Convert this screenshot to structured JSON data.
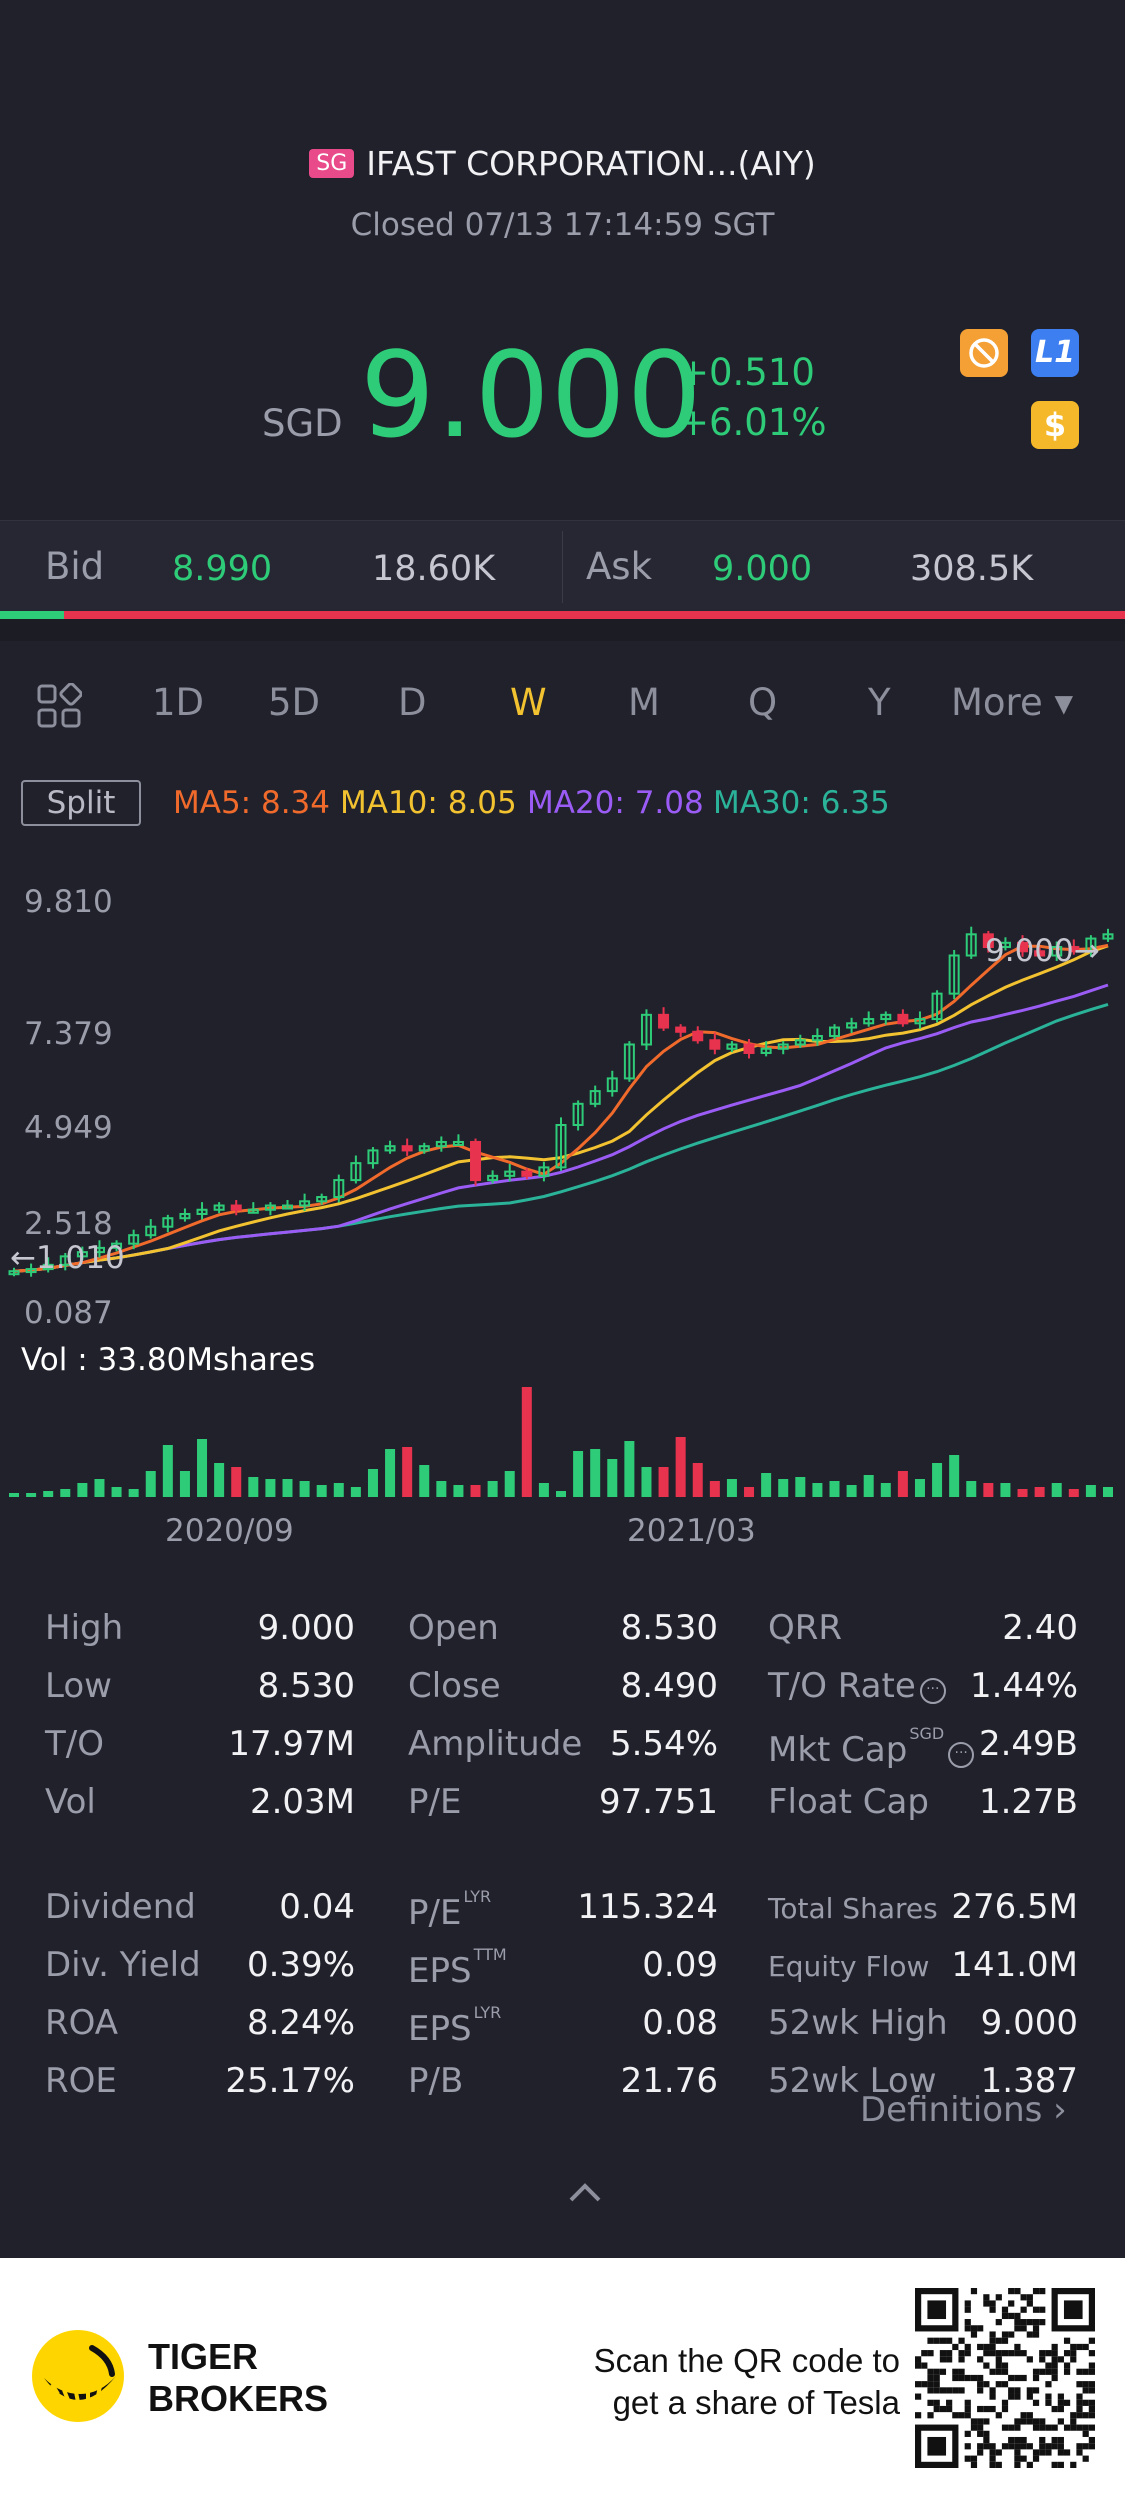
{
  "header": {
    "market_badge": "SG",
    "title": "IFAST CORPORATION...(AIY)",
    "status": "Closed 07/13 17:14:59 SGT",
    "currency": "SGD",
    "price": "9.000",
    "change": "+0.510",
    "change_pct": "+6.01%",
    "icons": [
      "no-shorting-icon",
      "level1-icon",
      "dollar-icon"
    ],
    "level_badge": "L1",
    "dollar_badge": "$"
  },
  "bidask": {
    "bid_label": "Bid",
    "bid_price": "8.990",
    "bid_volume": "18.60K",
    "ask_label": "Ask",
    "ask_price": "9.000",
    "ask_volume": "308.5K",
    "bid_ratio": 0.057
  },
  "tabs": {
    "items": [
      "1D",
      "5D",
      "D",
      "W",
      "M",
      "Q",
      "Y"
    ],
    "active": "W",
    "more_label": "More ▾"
  },
  "ma": {
    "split_label": "Split",
    "ma5": "MA5: 8.34",
    "ma10": "MA10: 8.05",
    "ma20": "MA20: 7.08",
    "ma30": "MA30: 6.35",
    "colors": {
      "ma5": "#f06a2c",
      "ma10": "#f2c230",
      "ma20": "#9b5cf5",
      "ma30": "#2bb39a",
      "up": "#2ecc78",
      "down": "#e8334f"
    }
  },
  "chart": {
    "y_labels": [
      "9.810",
      "7.379",
      "4.949",
      "2.518",
      "0.087"
    ],
    "low_marker": "←1.010",
    "last_marker": "9.000→",
    "vol_label": "Vol  : 33.80Mshares",
    "date_labels": [
      "2020/09",
      "2021/03"
    ]
  },
  "chart_data": {
    "type": "candlestick",
    "interval": "weekly",
    "y_ticks": [
      9.81,
      7.379,
      4.949,
      2.518,
      0.087
    ],
    "ylim": [
      0.087,
      9.81
    ],
    "x_labels": [
      "2020/09",
      "2021/03"
    ],
    "last_price": 9.0,
    "period_low": 1.01,
    "close": [
      1.05,
      1.1,
      1.2,
      1.4,
      1.5,
      1.6,
      1.7,
      1.9,
      2.1,
      2.3,
      2.4,
      2.5,
      2.6,
      2.5,
      2.5,
      2.6,
      2.6,
      2.7,
      2.8,
      3.2,
      3.6,
      3.9,
      4.0,
      3.9,
      4.0,
      4.1,
      4.1,
      3.2,
      3.3,
      3.4,
      3.3,
      3.5,
      4.5,
      5.0,
      5.3,
      5.6,
      6.4,
      7.1,
      6.8,
      6.7,
      6.5,
      6.3,
      6.4,
      6.2,
      6.3,
      6.4,
      6.5,
      6.6,
      6.8,
      6.9,
      7.0,
      7.1,
      6.9,
      7.0,
      7.6,
      8.5,
      9.0,
      8.7,
      8.8,
      8.6,
      8.5,
      8.7,
      8.6,
      8.9,
      9.0
    ],
    "volume_label": "Vol: 33.80Mshares",
    "ma": {
      "MA5": 8.34,
      "MA10": 8.05,
      "MA20": 7.08,
      "MA30": 6.35
    }
  },
  "stats": {
    "col1": [
      {
        "label": "High",
        "value": "9.000"
      },
      {
        "label": "Low",
        "value": "8.530"
      },
      {
        "label": "T/O",
        "value": "17.97M"
      },
      {
        "label": "Vol",
        "value": "2.03M"
      },
      {
        "label": "Dividend",
        "value": "0.04"
      },
      {
        "label": "Div. Yield",
        "value": "0.39%"
      },
      {
        "label": "ROA",
        "value": "8.24%"
      },
      {
        "label": "ROE",
        "value": "25.17%"
      }
    ],
    "col2": [
      {
        "label": "Open",
        "value": "8.530"
      },
      {
        "label": "Close",
        "value": "8.490"
      },
      {
        "label": "Amplitude",
        "value": "5.54%"
      },
      {
        "label": "P/E",
        "value": "97.751"
      },
      {
        "label": "P/E",
        "sup": "LYR",
        "value": "115.324"
      },
      {
        "label": "EPS",
        "sup": "TTM",
        "value": "0.09"
      },
      {
        "label": "EPS",
        "sup": "LYR",
        "value": "0.08"
      },
      {
        "label": "P/B",
        "value": "21.76"
      }
    ],
    "col3": [
      {
        "label": "QRR",
        "value": "2.40"
      },
      {
        "label": "T/O Rate",
        "value": "1.44%"
      },
      {
        "label": "Mkt Cap",
        "sup": "SGD",
        "value": "2.49B"
      },
      {
        "label": "Float Cap",
        "value": "1.27B"
      },
      {
        "label": "Total Shares",
        "value": "276.5M"
      },
      {
        "label": "Equity Flow",
        "value": "141.0M"
      },
      {
        "label": "52wk High",
        "value": "9.000"
      },
      {
        "label": "52wk Low",
        "value": "1.387"
      }
    ],
    "definitions": "Definitions ›",
    "info_glyph": "···"
  },
  "footer": {
    "brand_line1": "TIGER",
    "brand_line2": "BROKERS",
    "scan_line1": "Scan the QR code to",
    "scan_line2": "get a share of Tesla"
  }
}
